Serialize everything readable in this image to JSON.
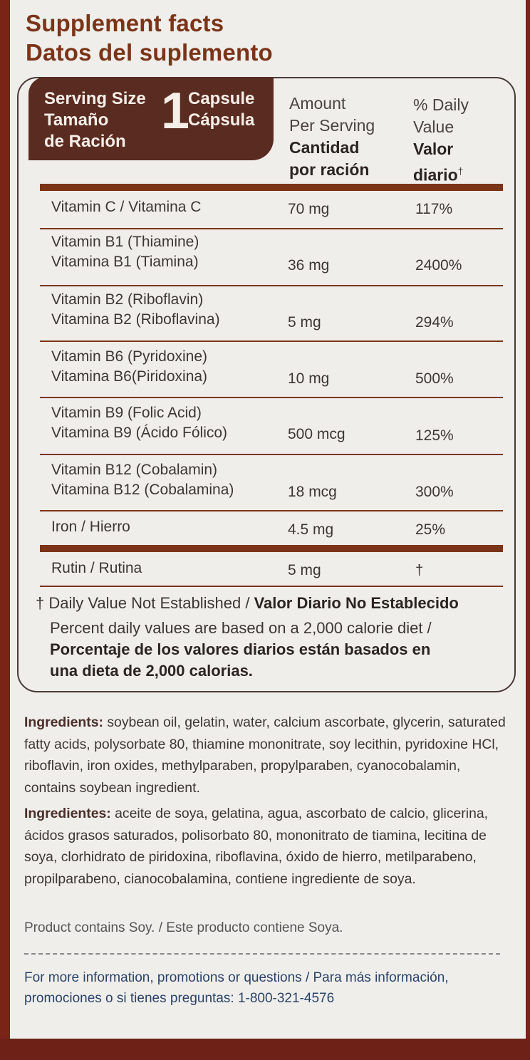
{
  "title": {
    "en": "Supplement facts",
    "es": "Datos del suplemento"
  },
  "serving": {
    "label_line1": "Serving Size",
    "label_line2": "Tamaño",
    "label_line3": "de Ración",
    "number": "1",
    "unit_en": "Capsule",
    "unit_es": "Cápsula"
  },
  "headers": {
    "amount_en_1": "Amount",
    "amount_en_2": "Per Serving",
    "amount_es_1": "Cantidad",
    "amount_es_2": "por ración",
    "dv_en_1": "% Daily",
    "dv_en_2": "Value",
    "dv_es_1": "Valor",
    "dv_es_2": "diario",
    "dv_mark": "†"
  },
  "nutrients": [
    {
      "line1": "Vitamin C / Vitamina C",
      "line2": "",
      "amount": "70 mg",
      "dv": "117%"
    },
    {
      "line1": "Vitamin B1 (Thiamine)",
      "line2": "Vitamina B1 (Tiamina)",
      "amount": "36 mg",
      "dv": "2400%"
    },
    {
      "line1": "Vitamin B2 (Riboflavin)",
      "line2": "Vitamina B2 (Riboflavina)",
      "amount": "5 mg",
      "dv": "294%"
    },
    {
      "line1": "Vitamin B6 (Pyridoxine)",
      "line2": "Vitamina B6(Piridoxina)",
      "amount": "10 mg",
      "dv": "500%"
    },
    {
      "line1": "Vitamin B9 (Folic Acid)",
      "line2": "Vitamina B9 (Ácido Fólico)",
      "amount": "500 mcg",
      "dv": "125%"
    },
    {
      "line1": "Vitamin B12 (Cobalamin)",
      "line2": "Vitamina B12 (Cobalamina)",
      "amount": "18 mcg",
      "dv": "300%"
    },
    {
      "line1": "Iron / Hierro",
      "line2": "",
      "amount": "4.5 mg",
      "dv": "25%"
    },
    {
      "line1": "Rutin / Rutina",
      "line2": "",
      "amount": "5 mg",
      "dv": "†"
    }
  ],
  "footnote": {
    "mark": "†",
    "dv_en": "Daily Value Not Established / ",
    "dv_es": "Valor Diario No Establecido",
    "percent_en": "Percent daily values are based on a 2,000 calorie diet /",
    "percent_es_1": "Porcentaje de los valores diarios están basados en",
    "percent_es_2": "una dieta de 2,000 calorias."
  },
  "ingredients": {
    "en_label": "Ingredients:",
    "en_text": " soybean oil, gelatin, water, calcium ascorbate, glycerin, saturated fatty acids, polysorbate 80, thiamine mononitrate, soy lecithin, pyridoxine HCl, riboflavin, iron oxides, methylparaben, propylparaben, cyanocobalamin, contains soybean ingredient.",
    "es_label": "Ingredientes:",
    "es_text": " aceite de soya, gelatina, agua, ascorbato de calcio, glicerina, ácidos grasos saturados, polisorbato 80, mononitrato de tiamina, lecitina de soya, clorhidrato de piridoxina, riboflavina, óxido de hierro, metilparabeno, propilparabeno, cianocobalamina, contiene ingrediente de soya."
  },
  "soy_note": "Product contains Soy. / Este producto contiene Soya.",
  "contact": {
    "line1": "For more information, promotions or questions / Para más información,",
    "line2": "promociones o si tienes preguntas: 1-800-321-4576"
  },
  "colors": {
    "brand_brown": "#7b3418",
    "serving_bg": "#5a2b20",
    "outer_red": "#7a2418"
  }
}
